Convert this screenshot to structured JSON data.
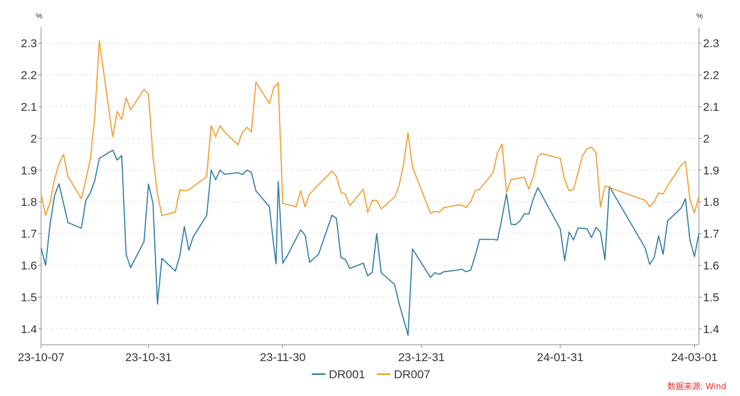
{
  "chart_data": {
    "type": "line",
    "left_unit": "%",
    "right_unit": "%",
    "ylim": [
      1.35,
      2.35
    ],
    "yticks": [
      1.4,
      1.5,
      1.6,
      1.7,
      1.8,
      1.9,
      2,
      2.1,
      2.2,
      2.3
    ],
    "ytick_labels": [
      "1.4",
      "1.5",
      "1.6",
      "1.7",
      "1.8",
      "1.9",
      "2",
      "2.1",
      "2.2",
      "2.3"
    ],
    "x_range": [
      "2023-10-07",
      "2024-03-02"
    ],
    "xticks": [
      "2023-10-07",
      "2023-10-31",
      "2023-11-30",
      "2023-12-31",
      "2024-01-31",
      "2024-03-01"
    ],
    "xtick_labels": [
      "23-10-07",
      "23-10-31",
      "23-11-30",
      "23-12-31",
      "24-01-31",
      "24-03-01"
    ],
    "grid": "horizontal dashed",
    "legend": "bottom-center",
    "series": [
      {
        "name": "DR001",
        "color": "#2f7aa6",
        "points": [
          [
            "2023-10-07",
            1.655
          ],
          [
            "2023-10-08",
            1.6
          ],
          [
            "2023-10-09",
            1.73
          ],
          [
            "2023-10-10",
            1.82
          ],
          [
            "2023-10-11",
            1.857
          ],
          [
            "2023-10-13",
            1.735
          ],
          [
            "2023-10-16",
            1.717
          ],
          [
            "2023-10-17",
            1.805
          ],
          [
            "2023-10-18",
            1.828
          ],
          [
            "2023-10-19",
            1.868
          ],
          [
            "2023-10-20",
            1.937
          ],
          [
            "2023-10-23",
            1.963
          ],
          [
            "2023-10-24",
            1.932
          ],
          [
            "2023-10-25",
            1.946
          ],
          [
            "2023-10-26",
            1.635
          ],
          [
            "2023-10-27",
            1.593
          ],
          [
            "2023-10-30",
            1.675
          ],
          [
            "2023-10-31",
            1.856
          ],
          [
            "2023-11-01",
            1.795
          ],
          [
            "2023-11-02",
            1.478
          ],
          [
            "2023-11-03",
            1.622
          ],
          [
            "2023-11-06",
            1.582
          ],
          [
            "2023-11-07",
            1.63
          ],
          [
            "2023-11-08",
            1.722
          ],
          [
            "2023-11-09",
            1.648
          ],
          [
            "2023-11-10",
            1.69
          ],
          [
            "2023-11-13",
            1.757
          ],
          [
            "2023-11-14",
            1.9
          ],
          [
            "2023-11-15",
            1.87
          ],
          [
            "2023-11-16",
            1.9
          ],
          [
            "2023-11-17",
            1.887
          ],
          [
            "2023-11-20",
            1.892
          ],
          [
            "2023-11-21",
            1.886
          ],
          [
            "2023-11-22",
            1.9
          ],
          [
            "2023-11-23",
            1.893
          ],
          [
            "2023-11-24",
            1.835
          ],
          [
            "2023-11-27",
            1.785
          ],
          [
            "2023-11-28",
            1.66
          ],
          [
            "2023-11-28T12:00",
            1.605
          ],
          [
            "2023-11-29",
            1.865
          ],
          [
            "2023-11-30",
            1.607
          ],
          [
            "2023-12-01",
            1.63
          ],
          [
            "2023-12-04",
            1.712
          ],
          [
            "2023-12-05",
            1.695
          ],
          [
            "2023-12-06",
            1.61
          ],
          [
            "2023-12-07",
            1.622
          ],
          [
            "2023-12-08",
            1.635
          ],
          [
            "2023-12-11",
            1.758
          ],
          [
            "2023-12-12",
            1.748
          ],
          [
            "2023-12-13",
            1.625
          ],
          [
            "2023-12-14",
            1.618
          ],
          [
            "2023-12-15",
            1.59
          ],
          [
            "2023-12-18",
            1.607
          ],
          [
            "2023-12-19",
            1.567
          ],
          [
            "2023-12-20",
            1.578
          ],
          [
            "2023-12-21",
            1.7
          ],
          [
            "2023-12-22",
            1.577
          ],
          [
            "2023-12-25",
            1.54
          ],
          [
            "2023-12-26",
            1.48
          ],
          [
            "2023-12-27",
            1.43
          ],
          [
            "2023-12-28",
            1.38
          ],
          [
            "2023-12-29",
            1.652
          ],
          [
            "2024-01-02",
            1.562
          ],
          [
            "2024-01-03",
            1.577
          ],
          [
            "2024-01-04",
            1.572
          ],
          [
            "2024-01-05",
            1.58
          ],
          [
            "2024-01-08",
            1.585
          ],
          [
            "2024-01-09",
            1.588
          ],
          [
            "2024-01-10",
            1.58
          ],
          [
            "2024-01-11",
            1.585
          ],
          [
            "2024-01-12",
            1.63
          ],
          [
            "2024-01-13",
            1.682
          ],
          [
            "2024-01-16",
            1.682
          ],
          [
            "2024-01-17",
            1.68
          ],
          [
            "2024-01-18",
            1.75
          ],
          [
            "2024-01-19",
            1.825
          ],
          [
            "2024-01-20",
            1.73
          ],
          [
            "2024-01-21",
            1.728
          ],
          [
            "2024-01-22",
            1.74
          ],
          [
            "2024-01-23",
            1.762
          ],
          [
            "2024-01-24",
            1.762
          ],
          [
            "2024-01-25",
            1.81
          ],
          [
            "2024-01-26",
            1.845
          ],
          [
            "2024-01-31",
            1.715
          ],
          [
            "2024-02-01",
            1.615
          ],
          [
            "2024-02-02",
            1.705
          ],
          [
            "2024-02-03",
            1.68
          ],
          [
            "2024-02-04",
            1.718
          ],
          [
            "2024-02-06",
            1.715
          ],
          [
            "2024-02-07",
            1.688
          ],
          [
            "2024-02-08",
            1.72
          ],
          [
            "2024-02-09",
            1.705
          ],
          [
            "2024-02-10",
            1.618
          ],
          [
            "2024-02-11",
            1.848
          ],
          [
            "2024-02-19",
            1.655
          ],
          [
            "2024-02-20",
            1.603
          ],
          [
            "2024-02-21",
            1.625
          ],
          [
            "2024-02-22",
            1.693
          ],
          [
            "2024-02-23",
            1.635
          ],
          [
            "2024-02-24",
            1.74
          ],
          [
            "2024-02-27",
            1.78
          ],
          [
            "2024-02-28",
            1.81
          ],
          [
            "2024-02-29",
            1.68
          ],
          [
            "2024-03-01",
            1.628
          ],
          [
            "2024-03-02",
            1.7
          ]
        ]
      },
      {
        "name": "DR007",
        "color": "#f39a2c",
        "points": [
          [
            "2023-10-07",
            1.825
          ],
          [
            "2023-10-08",
            1.758
          ],
          [
            "2023-10-09",
            1.8
          ],
          [
            "2023-10-10",
            1.872
          ],
          [
            "2023-10-11",
            1.92
          ],
          [
            "2023-10-12",
            1.95
          ],
          [
            "2023-10-13",
            1.88
          ],
          [
            "2023-10-16",
            1.81
          ],
          [
            "2023-10-17",
            1.87
          ],
          [
            "2023-10-18",
            1.935
          ],
          [
            "2023-10-19",
            2.07
          ],
          [
            "2023-10-20",
            2.308
          ],
          [
            "2023-10-23",
            2.005
          ],
          [
            "2023-10-24",
            2.085
          ],
          [
            "2023-10-25",
            2.06
          ],
          [
            "2023-10-26",
            2.128
          ],
          [
            "2023-10-27",
            2.09
          ],
          [
            "2023-10-30",
            2.155
          ],
          [
            "2023-10-31",
            2.14
          ],
          [
            "2023-11-01",
            1.94
          ],
          [
            "2023-11-02",
            1.825
          ],
          [
            "2023-11-03",
            1.757
          ],
          [
            "2023-11-06",
            1.768
          ],
          [
            "2023-11-07",
            1.838
          ],
          [
            "2023-11-08",
            1.835
          ],
          [
            "2023-11-09",
            1.838
          ],
          [
            "2023-11-13",
            1.88
          ],
          [
            "2023-11-14",
            2.04
          ],
          [
            "2023-11-15",
            2.005
          ],
          [
            "2023-11-16",
            2.04
          ],
          [
            "2023-11-17",
            2.02
          ],
          [
            "2023-11-20",
            1.98
          ],
          [
            "2023-11-21",
            2.02
          ],
          [
            "2023-11-22",
            2.035
          ],
          [
            "2023-11-23",
            2.02
          ],
          [
            "2023-11-24",
            2.178
          ],
          [
            "2023-11-27",
            2.11
          ],
          [
            "2023-11-28",
            2.16
          ],
          [
            "2023-11-29",
            2.175
          ],
          [
            "2023-11-30",
            1.795
          ],
          [
            "2023-12-03",
            1.785
          ],
          [
            "2023-12-04",
            1.835
          ],
          [
            "2023-12-05",
            1.785
          ],
          [
            "2023-12-06",
            1.825
          ],
          [
            "2023-12-11",
            1.897
          ],
          [
            "2023-12-12",
            1.88
          ],
          [
            "2023-12-13",
            1.83
          ],
          [
            "2023-12-14",
            1.825
          ],
          [
            "2023-12-15",
            1.788
          ],
          [
            "2023-12-18",
            1.84
          ],
          [
            "2023-12-19",
            1.767
          ],
          [
            "2023-12-20",
            1.805
          ],
          [
            "2023-12-21",
            1.805
          ],
          [
            "2023-12-22",
            1.778
          ],
          [
            "2023-12-25",
            1.815
          ],
          [
            "2023-12-26",
            1.85
          ],
          [
            "2023-12-27",
            1.92
          ],
          [
            "2023-12-28",
            2.018
          ],
          [
            "2023-12-29",
            1.91
          ],
          [
            "2024-01-02",
            1.765
          ],
          [
            "2024-01-03",
            1.77
          ],
          [
            "2024-01-04",
            1.768
          ],
          [
            "2024-01-05",
            1.782
          ],
          [
            "2024-01-08",
            1.79
          ],
          [
            "2024-01-09",
            1.79
          ],
          [
            "2024-01-10",
            1.782
          ],
          [
            "2024-01-11",
            1.8
          ],
          [
            "2024-01-12",
            1.835
          ],
          [
            "2024-01-13",
            1.84
          ],
          [
            "2024-01-16",
            1.892
          ],
          [
            "2024-01-17",
            1.955
          ],
          [
            "2024-01-18",
            1.982
          ],
          [
            "2024-01-19",
            1.83
          ],
          [
            "2024-01-20",
            1.87
          ],
          [
            "2024-01-23",
            1.878
          ],
          [
            "2024-01-24",
            1.84
          ],
          [
            "2024-01-25",
            1.88
          ],
          [
            "2024-01-26",
            1.943
          ],
          [
            "2024-01-27",
            1.952
          ],
          [
            "2024-01-31",
            1.937
          ],
          [
            "2024-02-01",
            1.87
          ],
          [
            "2024-02-02",
            1.835
          ],
          [
            "2024-02-03",
            1.84
          ],
          [
            "2024-02-05",
            1.945
          ],
          [
            "2024-02-06",
            1.968
          ],
          [
            "2024-02-07",
            1.972
          ],
          [
            "2024-02-08",
            1.955
          ],
          [
            "2024-02-09",
            1.785
          ],
          [
            "2024-02-10",
            1.85
          ],
          [
            "2024-02-19",
            1.805
          ],
          [
            "2024-02-20",
            1.785
          ],
          [
            "2024-02-21",
            1.8
          ],
          [
            "2024-02-22",
            1.828
          ],
          [
            "2024-02-23",
            1.825
          ],
          [
            "2024-02-24",
            1.85
          ],
          [
            "2024-02-27",
            1.915
          ],
          [
            "2024-02-28",
            1.928
          ],
          [
            "2024-02-29",
            1.808
          ],
          [
            "2024-03-01",
            1.765
          ],
          [
            "2024-03-02",
            1.818
          ]
        ]
      }
    ]
  },
  "source_note": "数据来源: Wind"
}
